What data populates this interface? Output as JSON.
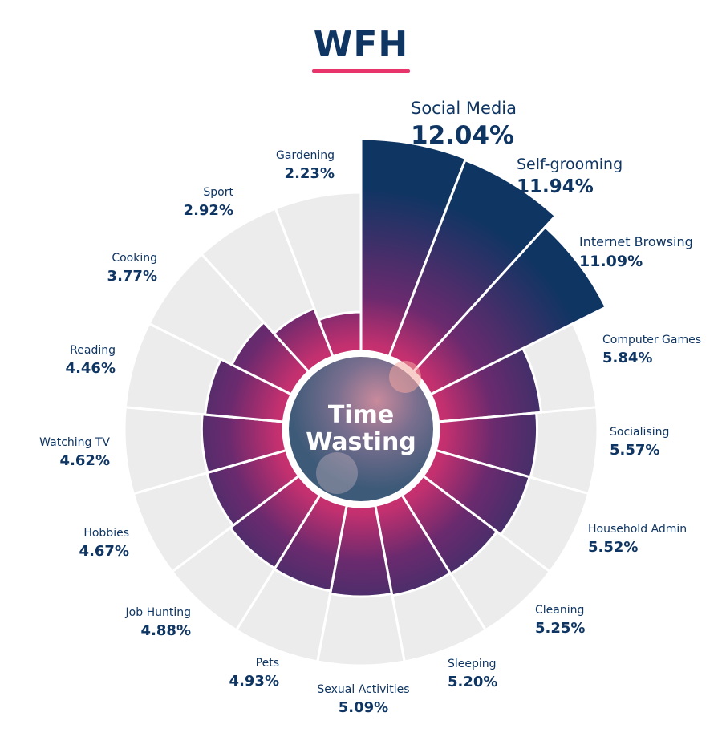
{
  "header": {
    "title": "WFH"
  },
  "center": {
    "line1": "Time",
    "line2": "Wasting"
  },
  "colors": {
    "accent": "#e8336b",
    "navy": "#0f3563",
    "magenta": "#c4306f",
    "purple": "#6b2a6e",
    "track": "#ececec"
  },
  "chart_data": {
    "type": "polar-bar",
    "title": "WFH",
    "unit": "%",
    "categories": [
      "Social Media",
      "Self-grooming",
      "Internet Browsing",
      "Computer Games",
      "Socialising",
      "Household Admin",
      "Cleaning",
      "Sleeping",
      "Sexual Activities",
      "Pets",
      "Job Hunting",
      "Hobbies",
      "Watching TV",
      "Reading",
      "Cooking",
      "Sport",
      "Gardening"
    ],
    "values": [
      12.04,
      11.94,
      11.09,
      5.84,
      5.57,
      5.52,
      5.25,
      5.2,
      5.09,
      4.93,
      4.88,
      4.67,
      4.62,
      4.46,
      3.77,
      2.92,
      2.23
    ],
    "value_labels": [
      "12.04%",
      "11.94%",
      "11.09%",
      "5.84%",
      "5.57%",
      "5.52%",
      "5.25%",
      "5.20%",
      "5.09%",
      "4.93%",
      "4.88%",
      "4.67%",
      "4.62%",
      "4.46%",
      "3.77%",
      "2.92%",
      "2.23%"
    ]
  }
}
